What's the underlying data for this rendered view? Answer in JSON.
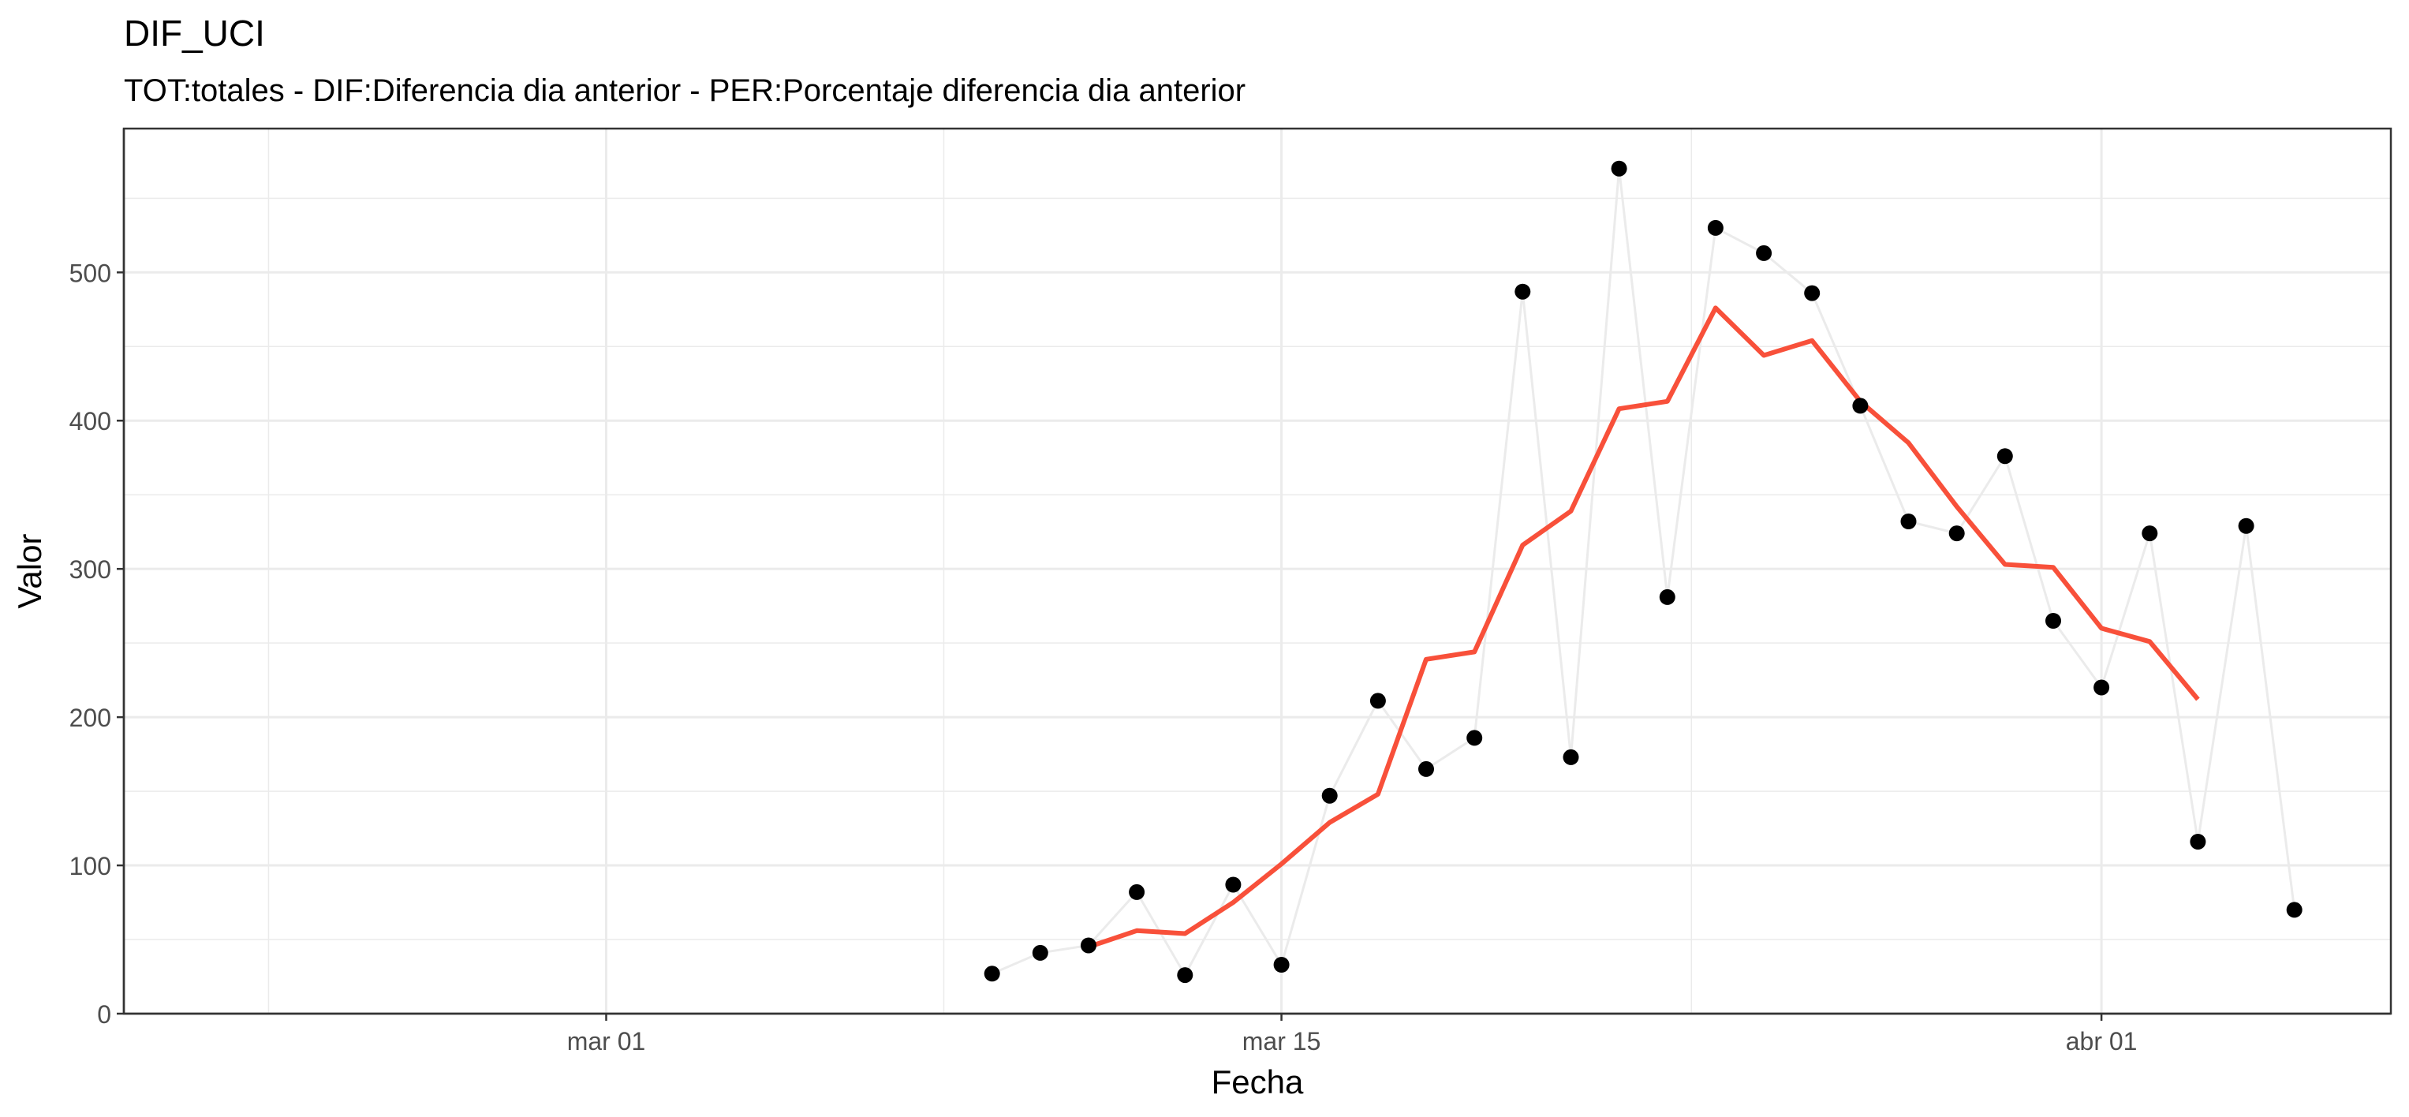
{
  "chart_data": {
    "type": "line",
    "title": "DIF_UCI",
    "subtitle": "TOT:totales - DIF:Diferencia dia anterior - PER:Porcentaje diferencia dia anterior",
    "xlabel": "Fecha",
    "ylabel": "Valor",
    "x_ticks": [
      {
        "date": "2020-03-01",
        "label": "mar 01"
      },
      {
        "date": "2020-03-15",
        "label": "mar 15"
      },
      {
        "date": "2020-04-01",
        "label": "abr 01"
      }
    ],
    "y_ticks": [
      0,
      100,
      200,
      300,
      400,
      500
    ],
    "xlim": [
      "2020-02-20",
      "2020-04-07"
    ],
    "ylim": [
      0,
      597
    ],
    "grid": true,
    "colors": {
      "points": "#000000",
      "raw_line": "#ebebeb",
      "smooth_line": "#f8503a",
      "grid": "#ebebeb",
      "panel_border": "#333333"
    },
    "series": [
      {
        "type": "line+scatter",
        "x": [
          "2020-03-09",
          "2020-03-10",
          "2020-03-11",
          "2020-03-12",
          "2020-03-13",
          "2020-03-14",
          "2020-03-15",
          "2020-03-16",
          "2020-03-17",
          "2020-03-18",
          "2020-03-19",
          "2020-03-20",
          "2020-03-21",
          "2020-03-22",
          "2020-03-23",
          "2020-03-24",
          "2020-03-25",
          "2020-03-26",
          "2020-03-27",
          "2020-03-28",
          "2020-03-29",
          "2020-03-30",
          "2020-03-31",
          "2020-04-01",
          "2020-04-02",
          "2020-04-03",
          "2020-04-04",
          "2020-04-05"
        ],
        "values": [
          27,
          41,
          46,
          82,
          26,
          87,
          33,
          147,
          211,
          165,
          186,
          487,
          173,
          570,
          281,
          530,
          513,
          486,
          410,
          332,
          324,
          376,
          265,
          220,
          324,
          116,
          329,
          70
        ]
      },
      {
        "type": "line",
        "x": [
          "2020-03-11",
          "2020-03-12",
          "2020-03-13",
          "2020-03-14",
          "2020-03-15",
          "2020-03-16",
          "2020-03-17",
          "2020-03-18",
          "2020-03-19",
          "2020-03-20",
          "2020-03-21",
          "2020-03-22",
          "2020-03-23",
          "2020-03-24",
          "2020-03-25",
          "2020-03-26",
          "2020-03-27",
          "2020-03-28",
          "2020-03-29",
          "2020-03-30",
          "2020-03-31",
          "2020-04-01",
          "2020-04-02",
          "2020-04-03"
        ],
        "values": [
          45,
          56,
          54,
          75,
          101,
          129,
          148,
          239,
          244,
          316,
          339,
          408,
          413,
          476,
          444,
          454,
          413,
          385,
          342,
          303,
          301,
          260,
          251,
          212
        ]
      }
    ]
  }
}
